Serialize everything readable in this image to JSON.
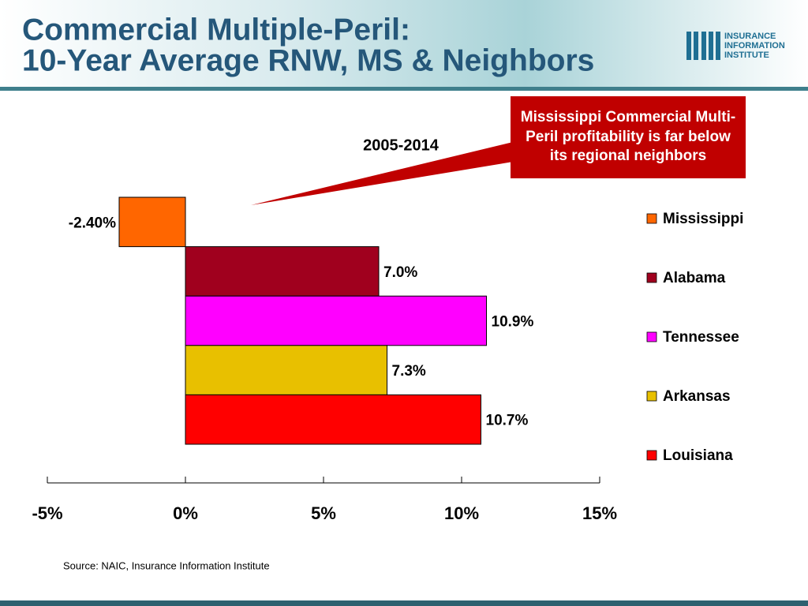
{
  "title": [
    "Commercial Multiple-Peril:",
    "10-Year Average RNW, MS & Neighbors"
  ],
  "logo": [
    "INSURANCE",
    "INFORMATION",
    "INSTITUTE"
  ],
  "source": "Source: NAIC, Insurance Information Institute",
  "chart_data": {
    "type": "bar",
    "orientation": "horizontal",
    "subtitle": "2005-2014",
    "annotation": "Mississippi Commercial Multi-Peril profitability is far below its regional neighbors",
    "series": [
      {
        "name": "Mississippi",
        "color": "#ff6600",
        "values": [
          -2.4
        ],
        "value_labels": [
          "-2.40%"
        ]
      },
      {
        "name": "Alabama",
        "color": "#a0001e",
        "values": [
          7.0
        ],
        "value_labels": [
          "7.0%"
        ]
      },
      {
        "name": "Tennessee",
        "color": "#ff00ff",
        "values": [
          10.9
        ],
        "value_labels": [
          "10.9%"
        ]
      },
      {
        "name": "Arkansas",
        "color": "#e8c000",
        "values": [
          7.3
        ],
        "value_labels": [
          "7.3%"
        ]
      },
      {
        "name": "Louisiana",
        "color": "#ff0000",
        "values": [
          10.7
        ],
        "value_labels": [
          "10.7%"
        ]
      }
    ],
    "xlim": [
      -5,
      15
    ],
    "xticks": [
      {
        "value": -5,
        "label": "-5%"
      },
      {
        "value": 0,
        "label": "0%"
      },
      {
        "value": 5,
        "label": "5%"
      },
      {
        "value": 10,
        "label": "10%"
      },
      {
        "value": 15,
        "label": "15%"
      }
    ],
    "legend": "right"
  }
}
